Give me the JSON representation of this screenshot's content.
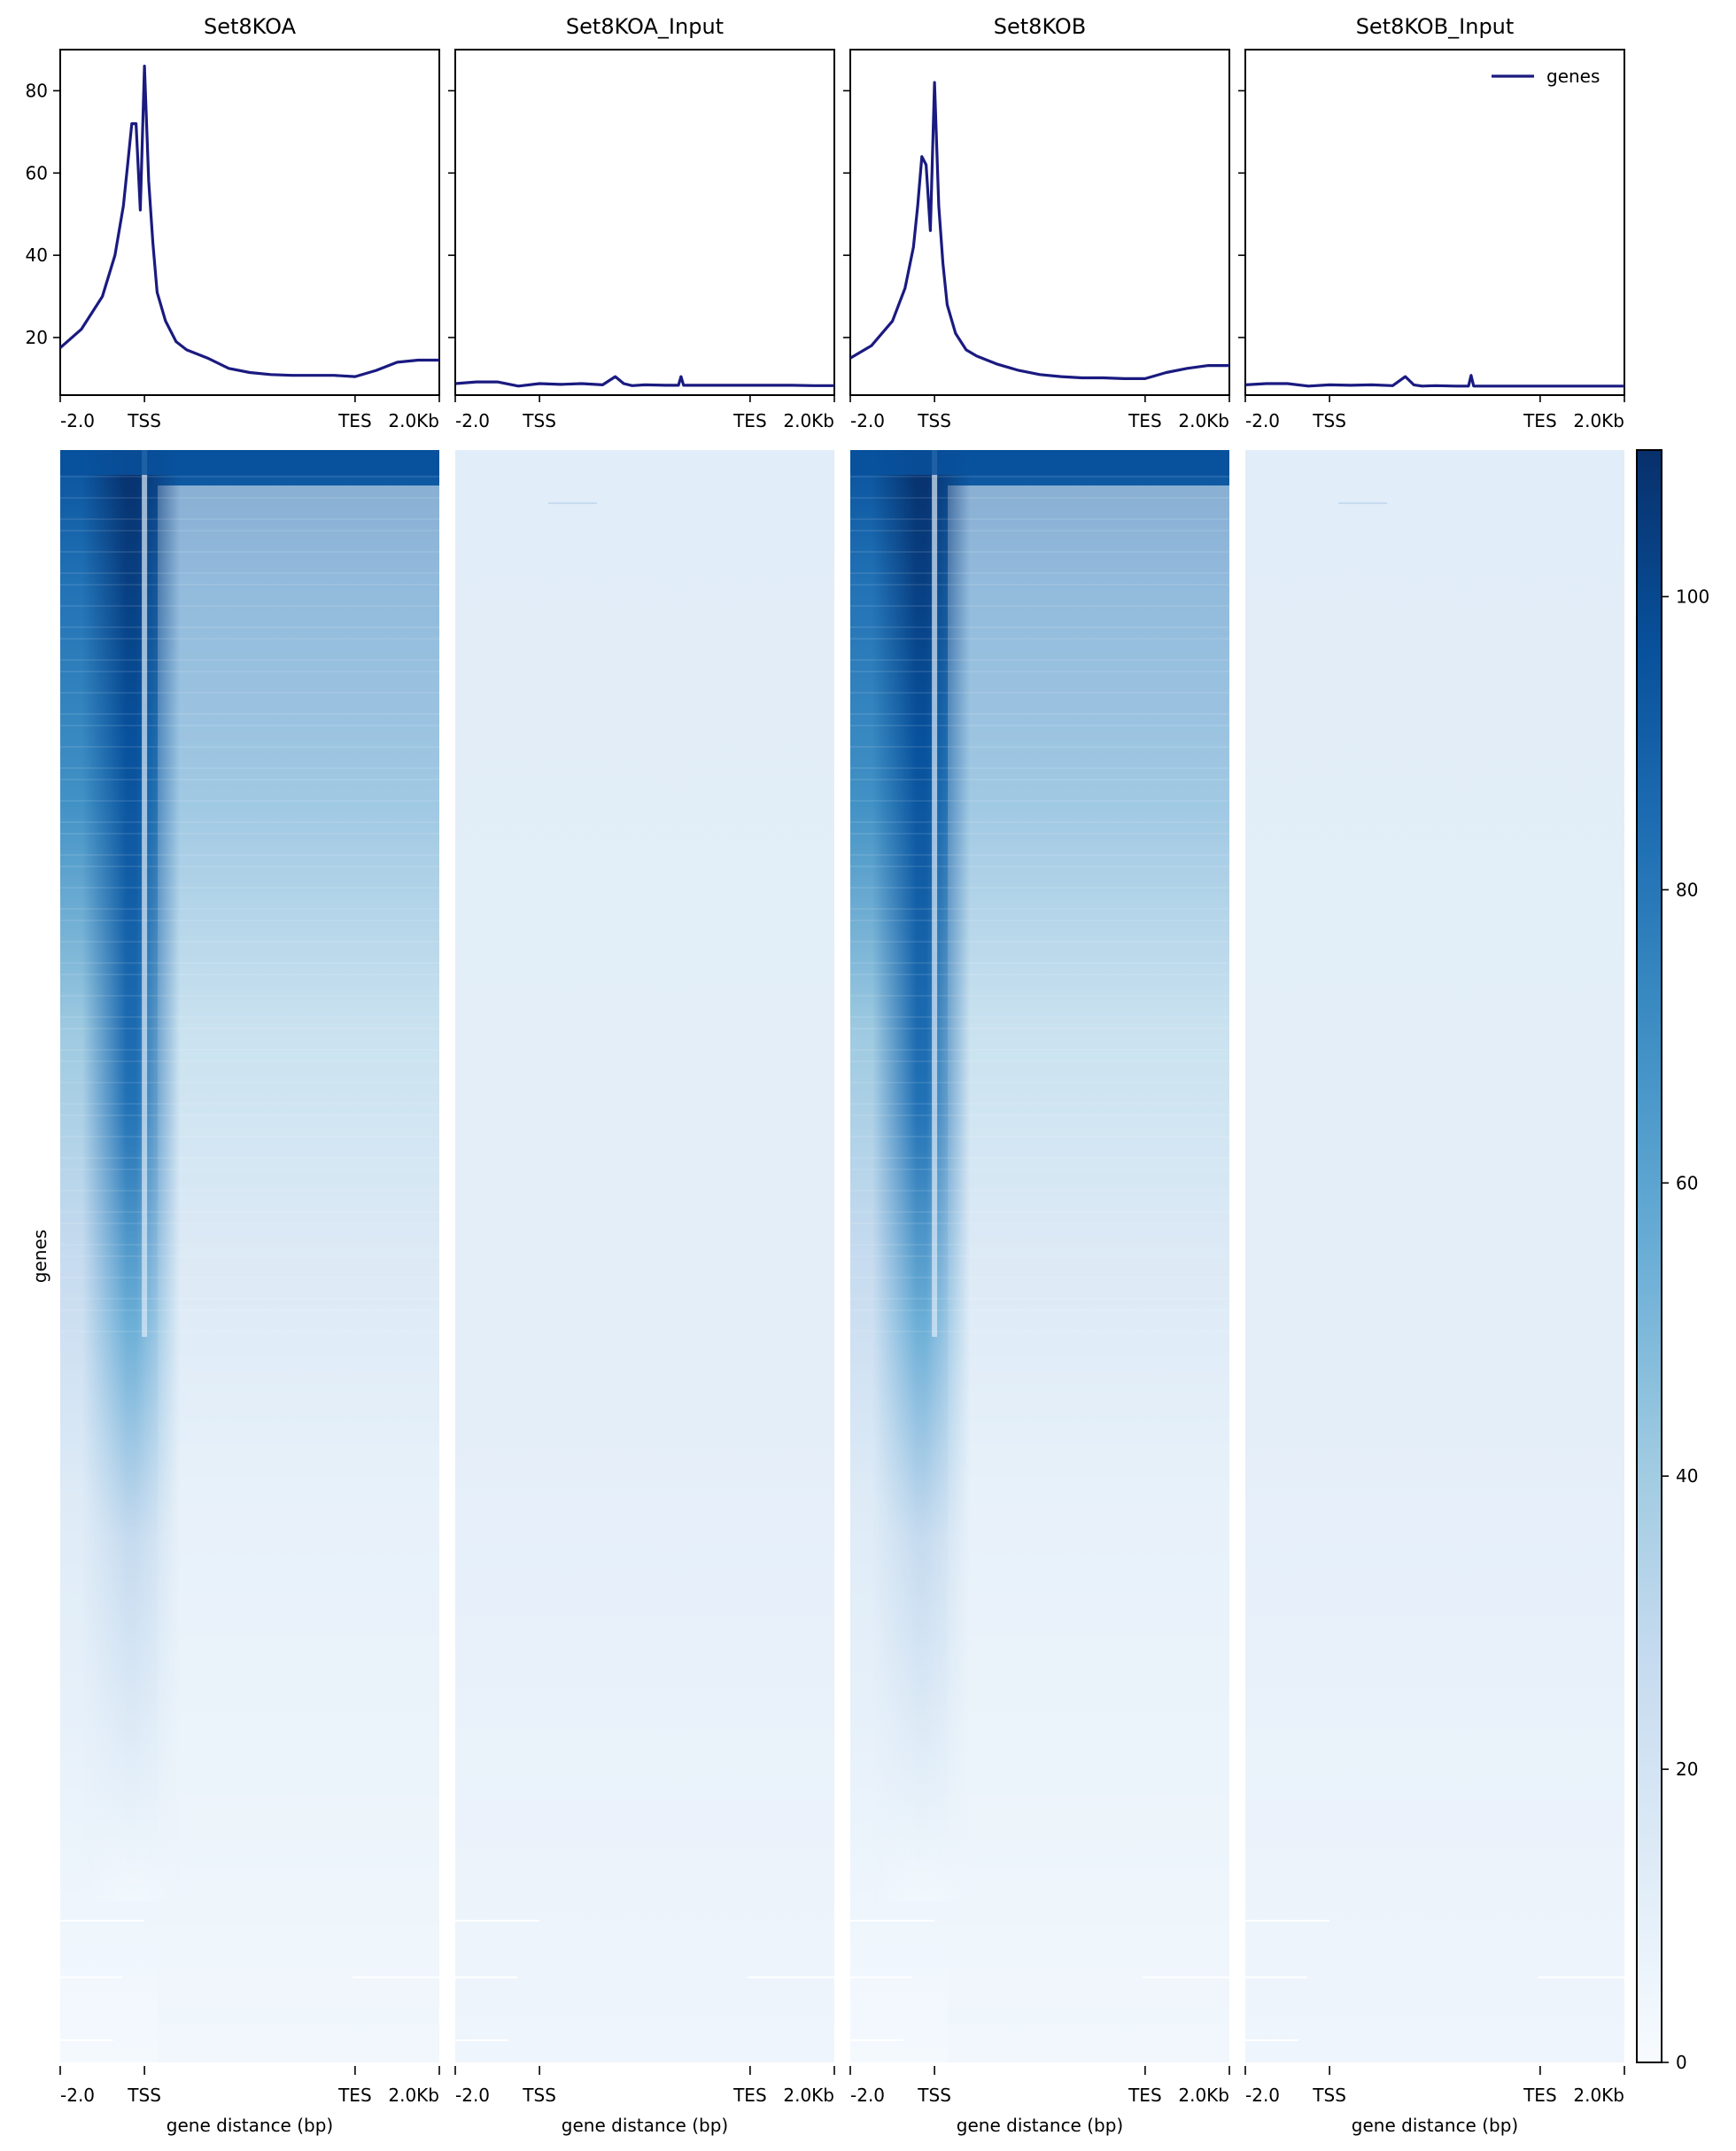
{
  "chart_data": {
    "type": "heatmap",
    "colormap": "Blues",
    "colors": {
      "profile_line": "#1a1a80",
      "heat_max": "#08306b",
      "heat_min": "#f7fbff"
    },
    "panels": [
      "Set8KOA",
      "Set8KOA_Input",
      "Set8KOB",
      "Set8KOB_Input"
    ],
    "xticks": [
      "-2.0",
      "TSS",
      "TES",
      "2.0Kb"
    ],
    "xlabel": "gene distance (bp)",
    "heatmap_ylabel": "genes",
    "profile": {
      "ylim": [
        6,
        90
      ],
      "yticks": [
        "20",
        "40",
        "60",
        "80"
      ],
      "legend": {
        "label": "genes",
        "placement": "top-right"
      },
      "series": [
        {
          "panel": "Set8KOA",
          "x": [
            -2000,
            -1500,
            -1000,
            -700,
            -500,
            -400,
            -300,
            -200,
            -100,
            0,
            100,
            200,
            300,
            500,
            750,
            1000,
            1500,
            2000,
            2500,
            3000,
            3500,
            4000,
            4500,
            5000,
            5500,
            6000,
            6500,
            7000
          ],
          "y": [
            17.5,
            22,
            30,
            40,
            52,
            62,
            72,
            72,
            51,
            86,
            58,
            43,
            31,
            24,
            19,
            17,
            15,
            12.5,
            11.5,
            11,
            10.8,
            10.8,
            10.8,
            10.5,
            12,
            14,
            14.5,
            14.5
          ]
        },
        {
          "panel": "Set8KOA_Input",
          "x": [
            -2000,
            -1500,
            -1000,
            -500,
            0,
            500,
            1000,
            1500,
            1800,
            2000,
            2200,
            2500,
            3000,
            3300,
            3360,
            3420,
            3600,
            4000,
            4500,
            5000,
            5500,
            6000,
            6500,
            7000
          ],
          "y": [
            8.8,
            9.2,
            9.2,
            8.2,
            8.8,
            8.6,
            8.8,
            8.5,
            10.5,
            8.8,
            8.3,
            8.5,
            8.4,
            8.4,
            10.5,
            8.4,
            8.4,
            8.4,
            8.4,
            8.4,
            8.4,
            8.4,
            8.3,
            8.3
          ]
        },
        {
          "panel": "Set8KOB",
          "x": [
            -2000,
            -1500,
            -1000,
            -700,
            -500,
            -400,
            -300,
            -200,
            -100,
            0,
            100,
            200,
            300,
            500,
            750,
            1000,
            1500,
            2000,
            2500,
            3000,
            3500,
            4000,
            4500,
            5000,
            5500,
            6000,
            6500,
            7000
          ],
          "y": [
            15,
            18,
            24,
            32,
            42,
            52,
            64,
            62,
            46,
            82,
            52,
            38,
            28,
            21,
            17,
            15.5,
            13.5,
            12,
            11,
            10.5,
            10.2,
            10.2,
            10,
            10,
            11.5,
            12.5,
            13.2,
            13.2
          ]
        },
        {
          "panel": "Set8KOB_Input",
          "x": [
            -2000,
            -1500,
            -1000,
            -500,
            0,
            500,
            1000,
            1500,
            1800,
            2000,
            2200,
            2500,
            3000,
            3300,
            3360,
            3420,
            3600,
            4000,
            4500,
            5000,
            5500,
            6000,
            6500,
            7000
          ],
          "y": [
            8.5,
            8.8,
            8.8,
            8.2,
            8.5,
            8.4,
            8.5,
            8.3,
            10.5,
            8.5,
            8.2,
            8.3,
            8.2,
            8.2,
            10.8,
            8.2,
            8.2,
            8.2,
            8.2,
            8.2,
            8.2,
            8.2,
            8.2,
            8.2
          ]
        }
      ]
    },
    "colorbar": {
      "range": [
        0,
        110
      ],
      "ticks": [
        "0",
        "20",
        "40",
        "60",
        "80",
        "100"
      ]
    }
  }
}
